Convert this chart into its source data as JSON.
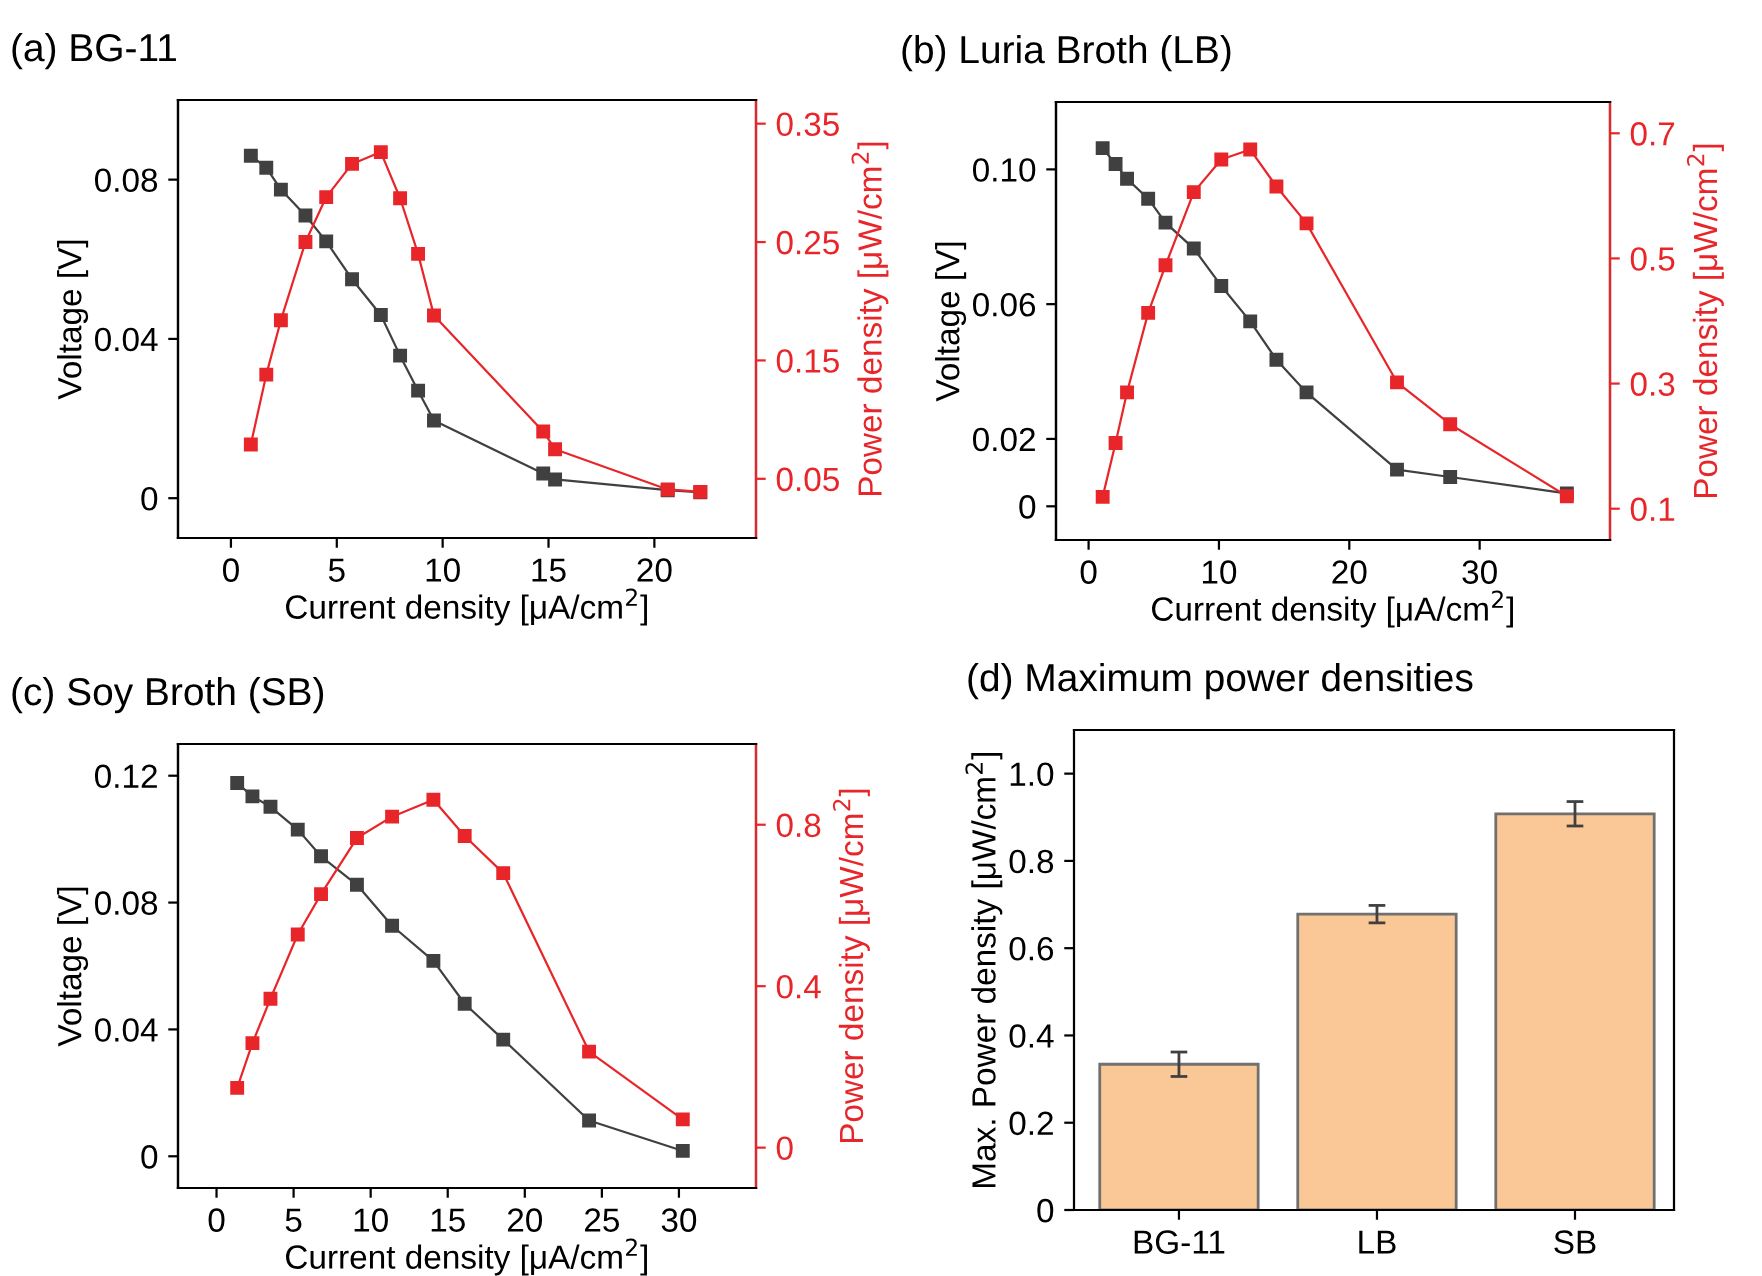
{
  "chart_data": [
    {
      "type": "line",
      "title": "(a) BG-11",
      "xlabel": "Current density [μA/cm$^{2}$]",
      "ylabel": "Voltage [V]",
      "y2label": "Power density [μW/cm$^{2}$]",
      "marker": "square",
      "line_style": "solid",
      "grid": false,
      "legend": false,
      "xlim": [
        -2.5,
        24.8
      ],
      "xticks": [
        0,
        5,
        10,
        15,
        20
      ],
      "ylim": [
        -0.01,
        0.1
      ],
      "yticks": [
        {
          "value": 0,
          "label": "0"
        },
        0.04,
        0.08
      ],
      "y2lim": [
        0,
        0.37
      ],
      "y2ticks": [
        0.05,
        0.15,
        0.25,
        0.35
      ],
      "series": [
        {
          "color": "#404040",
          "x": [
            0.94,
            1.67,
            2.36,
            3.52,
            4.5,
            5.72,
            7.08,
            7.99,
            8.84,
            9.59,
            14.75,
            15.31,
            20.63,
            22.17
          ],
          "values": [
            0.086,
            0.083,
            0.0775,
            0.071,
            0.0645,
            0.055,
            0.046,
            0.0358,
            0.027,
            0.0195,
            0.0062,
            0.0047,
            0.002,
            0.0015
          ]
        },
        {
          "color": "#e8262a",
          "axis": "y2",
          "x": [
            0.94,
            1.67,
            2.36,
            3.52,
            4.5,
            5.72,
            7.08,
            7.99,
            8.84,
            9.59,
            14.75,
            15.31,
            20.63,
            22.17
          ],
          "values": [
            0.079,
            0.138,
            0.184,
            0.25,
            0.288,
            0.316,
            0.326,
            0.287,
            0.24,
            0.188,
            0.09,
            0.075,
            0.041,
            0.039
          ]
        }
      ]
    },
    {
      "type": "line",
      "title": "(b) Luria Broth (LB)",
      "xlabel": "Current density [μA/cm$^{2}$]",
      "ylabel": "Voltage [V]",
      "y2label": "Power density [μW/cm$^{2}$]",
      "marker": "square",
      "line_style": "solid",
      "grid": false,
      "legend": false,
      "xlim": [
        -2.5,
        40
      ],
      "xticks": [
        0,
        10,
        20,
        30
      ],
      "ylim": [
        -0.01,
        0.12
      ],
      "yticks": [
        {
          "value": 0,
          "label": "0"
        },
        0.02,
        0.06,
        {
          "value": 0.1,
          "label": "0.10"
        }
      ],
      "y2lim": [
        0.05,
        0.75
      ],
      "y2ticks": [
        0.1,
        0.3,
        0.5,
        0.7
      ],
      "series": [
        {
          "color": "#404040",
          "x": [
            1.08,
            2.07,
            2.95,
            4.57,
            5.9,
            8.07,
            10.18,
            12.4,
            14.41,
            16.72,
            23.66,
            27.74,
            36.69
          ],
          "values": [
            0.1063,
            0.1016,
            0.0972,
            0.0913,
            0.0842,
            0.0765,
            0.0654,
            0.0549,
            0.0435,
            0.0338,
            0.0109,
            0.0087,
            0.0038
          ]
        },
        {
          "color": "#e8262a",
          "axis": "y2",
          "x": [
            1.08,
            2.07,
            2.95,
            4.57,
            5.9,
            8.07,
            10.18,
            12.4,
            14.41,
            16.72,
            23.66,
            27.74,
            36.69
          ],
          "values": [
            0.119,
            0.205,
            0.286,
            0.413,
            0.489,
            0.606,
            0.658,
            0.674,
            0.615,
            0.556,
            0.302,
            0.235,
            0.12
          ]
        }
      ]
    },
    {
      "type": "line",
      "title": "(c) Soy Broth (SB)",
      "xlabel": "Current density [μA/cm$^{2}$]",
      "ylabel": "Voltage [V]",
      "y2label": "Power density [μW/cm$^{2}$]",
      "marker": "square",
      "line_style": "solid",
      "grid": false,
      "legend": false,
      "xlim": [
        -2.5,
        35
      ],
      "xticks": [
        0,
        5,
        10,
        15,
        20,
        25,
        30
      ],
      "ylim": [
        -0.01,
        0.13
      ],
      "yticks": [
        {
          "value": 0,
          "label": "0"
        },
        0.04,
        0.08,
        0.12
      ],
      "y2lim": [
        -0.1,
        1.0
      ],
      "y2ticks": [
        {
          "value": 0,
          "label": "0"
        },
        0.4,
        0.8
      ],
      "series": [
        {
          "color": "#404040",
          "x": [
            1.34,
            2.33,
            3.5,
            5.27,
            6.78,
            9.11,
            11.39,
            14.07,
            16.1,
            18.6,
            24.17,
            30.25
          ],
          "values": [
            0.1177,
            0.1135,
            0.1102,
            0.103,
            0.0946,
            0.0856,
            0.0727,
            0.0616,
            0.0481,
            0.0368,
            0.0113,
            0.0017
          ]
        },
        {
          "color": "#e8262a",
          "axis": "y2",
          "x": [
            1.34,
            2.33,
            3.5,
            5.27,
            6.78,
            9.11,
            11.39,
            14.07,
            16.1,
            18.6,
            24.17,
            30.25
          ],
          "values": [
            0.148,
            0.259,
            0.369,
            0.528,
            0.628,
            0.767,
            0.82,
            0.862,
            0.772,
            0.68,
            0.238,
            0.07
          ]
        }
      ]
    },
    {
      "type": "bar",
      "title": "(d) Maximum power densities",
      "ylabel": "Max. Power density [μW/cm$^{2}$]",
      "grid": false,
      "legend": false,
      "categories": [
        "BG-11",
        "LB",
        "SB"
      ],
      "values": [
        0.334,
        0.678,
        0.908
      ],
      "errors": [
        0.028,
        0.02,
        0.028
      ],
      "color": "#f9c896",
      "ylim": [
        0,
        1.1
      ],
      "yticks": [
        {
          "value": 0,
          "label": "0"
        },
        0.2,
        0.4,
        0.6,
        0.8,
        {
          "value": 1.0,
          "label": "1.0"
        }
      ]
    }
  ]
}
